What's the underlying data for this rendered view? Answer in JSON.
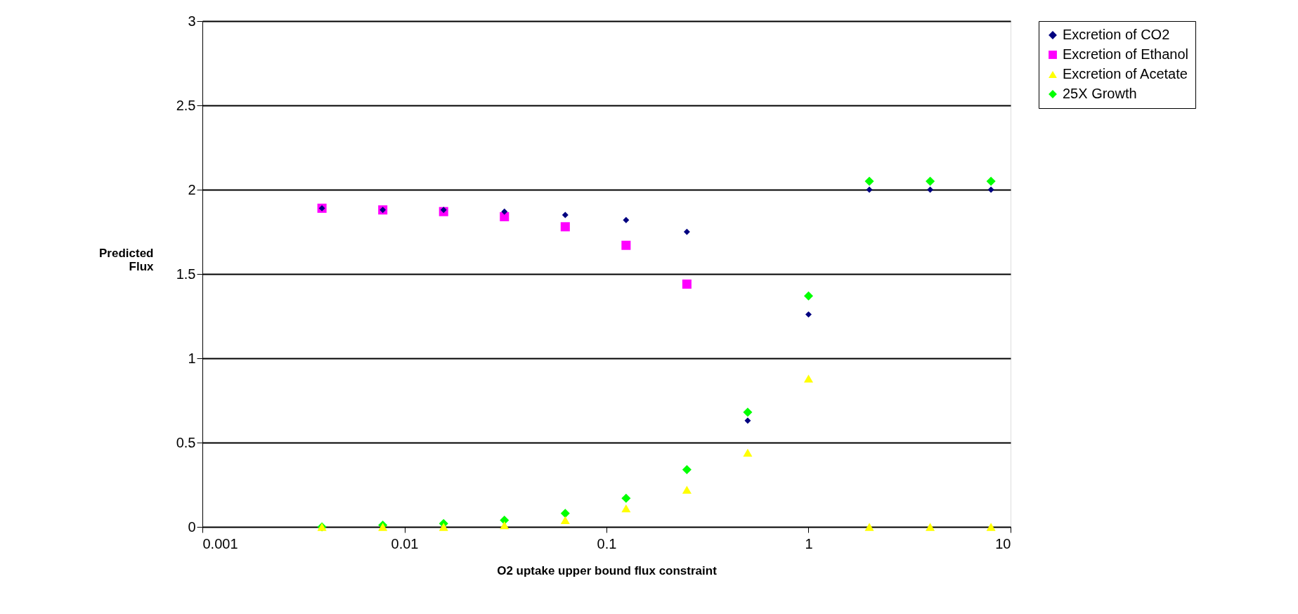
{
  "chart_data": {
    "type": "scatter",
    "xlabel": "O2 uptake upper bound flux constraint",
    "ylabel": "Predicted Flux",
    "log": "x",
    "xlim": [
      0.001,
      10
    ],
    "xticks": [
      0.001,
      0.01,
      0.1,
      1,
      10
    ],
    "ylim": [
      0,
      3
    ],
    "yticks": [
      0,
      0.5,
      1,
      1.5,
      2,
      2.5,
      3
    ],
    "grid": "y",
    "legend": "right",
    "x": [
      0.00390625,
      0.0078125,
      0.015625,
      0.03125,
      0.0625,
      0.125,
      0.25,
      0.5,
      1,
      2,
      4,
      8
    ],
    "series": [
      {
        "name": "Excretion of CO2",
        "color": "#000080",
        "marker": "diamond",
        "values": [
          1.89,
          1.88,
          1.88,
          1.87,
          1.85,
          1.82,
          1.75,
          0.63,
          1.26,
          2.0,
          2.0,
          2.0
        ]
      },
      {
        "name": "Excretion of Ethanol",
        "color": "#ff00ff",
        "marker": "square",
        "values": [
          1.89,
          1.88,
          1.87,
          1.84,
          1.78,
          1.67,
          1.44,
          null,
          null,
          null,
          null,
          null
        ]
      },
      {
        "name": "Excretion of Acetate",
        "color": "#ffff00",
        "marker": "triangle",
        "values": [
          0,
          0,
          0,
          0.01,
          0.04,
          0.11,
          0.22,
          0.44,
          0.88,
          0,
          0,
          0
        ]
      },
      {
        "name": "25X Growth",
        "color": "#00ff00",
        "marker": "diamond",
        "values": [
          0,
          0.01,
          0.02,
          0.04,
          0.08,
          0.17,
          0.34,
          0.68,
          1.37,
          2.05,
          2.05,
          2.05
        ]
      }
    ]
  }
}
